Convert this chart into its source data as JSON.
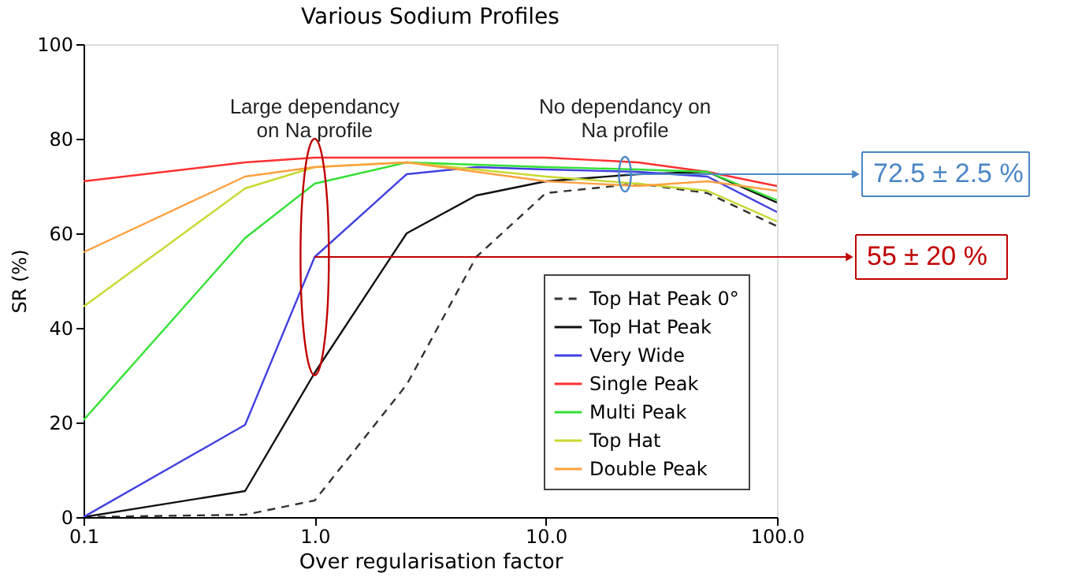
{
  "chart_data": {
    "type": "line",
    "title": "Various Sodium Profiles",
    "xlabel": "Over regularisation factor",
    "ylabel": "SR (%)",
    "x": [
      0.1,
      0.5,
      1,
      2.5,
      5,
      10,
      25,
      50,
      100
    ],
    "log": "x",
    "xlim": [
      0.1,
      100
    ],
    "xticks": [
      {
        "value": 0.1,
        "label": "0.1"
      },
      {
        "value": 1,
        "label": "1.0"
      },
      {
        "value": 10,
        "label": "10.0"
      },
      {
        "value": 100,
        "label": "100.0"
      }
    ],
    "ylim": [
      0,
      100
    ],
    "yticks": [
      0,
      20,
      40,
      60,
      80,
      100
    ],
    "grid": false,
    "legend": "bottom right",
    "series": [
      {
        "name": "Top Hat Peak 0°",
        "color": "#333333",
        "line_style": "dashed",
        "values": [
          0,
          0.5,
          3.5,
          28,
          55,
          68.5,
          70.5,
          68.5,
          61.5
        ]
      },
      {
        "name": "Top Hat Peak",
        "color": "#111111",
        "line_style": "solid",
        "values": [
          0,
          5.5,
          30.5,
          60,
          68,
          71,
          72.5,
          73,
          66.5
        ]
      },
      {
        "name": "Very Wide",
        "color": "#4040e0",
        "line_style": "solid",
        "values": [
          0,
          19.5,
          55,
          72.5,
          74,
          73.5,
          73,
          72,
          64.5
        ]
      },
      {
        "name": "Single Peak",
        "color": "#ff3030",
        "line_style": "solid",
        "values": [
          71,
          75,
          76,
          76,
          76,
          76,
          75,
          73,
          70
        ]
      },
      {
        "name": "Multi Peak",
        "color": "#33e033",
        "line_style": "solid",
        "values": [
          20.5,
          59,
          70.5,
          75,
          74.5,
          74,
          73.5,
          73,
          67
        ]
      },
      {
        "name": "Top Hat",
        "color": "#c8d830",
        "line_style": "solid",
        "values": [
          44.5,
          69.5,
          74,
          75,
          73.5,
          72,
          70.5,
          69,
          62.5
        ]
      },
      {
        "name": "Double Peak",
        "color": "#ffa040",
        "line_style": "solid",
        "values": [
          56,
          72,
          74,
          75,
          73,
          71,
          70,
          71,
          69
        ]
      }
    ],
    "annotations": [
      "Large dependancy\non Na profile",
      "No dependancy on\nNa profile",
      {
        "text": "55 ± 20 %",
        "x": 1,
        "y": 55
      },
      {
        "text": "72.5 ± 2.5 %",
        "x": 22,
        "y": 72.5
      }
    ]
  }
}
